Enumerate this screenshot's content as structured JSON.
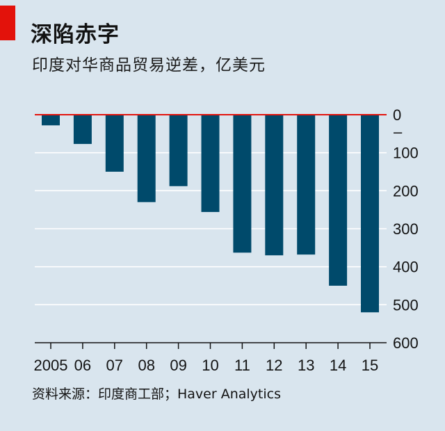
{
  "title": "深陷赤字",
  "subtitle": "印度对华商品贸易逆差，亿美元",
  "source": "资料来源：印度商工部；Haver Analytics",
  "colors": {
    "bar": "#004a6b",
    "zero_line": "#e3120b",
    "grid": "#ffffff",
    "accent_tab": "#e3120b"
  },
  "chart_data": {
    "type": "bar",
    "title": "深陷赤字",
    "ylabel": "印度对华商品贸易逆差，亿美元",
    "xlabel": "",
    "categories": [
      "2005",
      "06",
      "07",
      "08",
      "09",
      "10",
      "11",
      "12",
      "13",
      "14",
      "15"
    ],
    "values": [
      -28,
      -77,
      -150,
      -230,
      -188,
      -256,
      -363,
      -370,
      -368,
      -450,
      -520
    ],
    "ylim": [
      -600,
      0
    ],
    "yticks": [
      0,
      100,
      200,
      300,
      400,
      500,
      600
    ],
    "ytick_labels": [
      "0",
      "100",
      "200",
      "300",
      "400",
      "500",
      "600"
    ],
    "minus_marker": "–",
    "grid": true,
    "axis_side": "right"
  }
}
